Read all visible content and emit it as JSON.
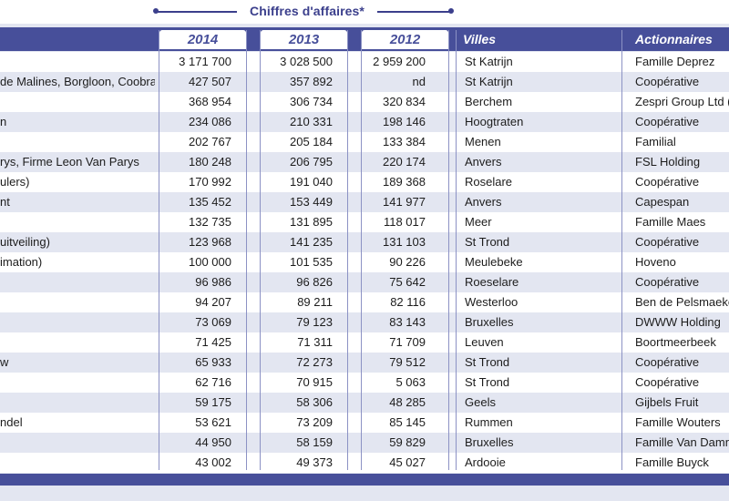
{
  "group_header": "Chiffres d'affaires*",
  "columns": {
    "y2014": "2014",
    "y2013": "2013",
    "y2012": "2012",
    "cities": "Villes",
    "shareholders": "Actionnaires"
  },
  "rows": [
    {
      "name": "",
      "y2014": "3 171 700",
      "y2013": "3 028 500",
      "y2012": "2 959 200",
      "city": "St Katrijn",
      "owner": "Famille Deprez"
    },
    {
      "name": "de Malines, Borgloon, Coobra)",
      "y2014": "427 507",
      "y2013": "357 892",
      "y2012": "nd",
      "city": "St Katrijn",
      "owner": "Coopérative"
    },
    {
      "name": "",
      "y2014": "368 954",
      "y2013": "306 734",
      "y2012": "320 834",
      "city": "Berchem",
      "owner": "Zespri Group Ltd ("
    },
    {
      "name": "n",
      "y2014": "234 086",
      "y2013": "210 331",
      "y2012": "198 146",
      "city": "Hoogtraten",
      "owner": "Coopérative"
    },
    {
      "name": "",
      "y2014": "202 767",
      "y2013": "205 184",
      "y2012": "133 384",
      "city": "Menen",
      "owner": "Familial"
    },
    {
      "name": "rys, Firme Leon Van Parys",
      "y2014": "180 248",
      "y2013": "206 795",
      "y2012": "220 174",
      "city": "Anvers",
      "owner": "FSL Holding"
    },
    {
      "name": "ulers)",
      "y2014": "170 992",
      "y2013": "191 040",
      "y2012": "189 368",
      "city": "Roselare",
      "owner": "Coopérative"
    },
    {
      "name": "nt",
      "y2014": "135 452",
      "y2013": "153 449",
      "y2012": "141 977",
      "city": "Anvers",
      "owner": "Capespan"
    },
    {
      "name": "",
      "y2014": "132 735",
      "y2013": "131 895",
      "y2012": "118 017",
      "city": "Meer",
      "owner": "Famille Maes"
    },
    {
      "name": "uitveiling)",
      "y2014": "123 968",
      "y2013": "141 235",
      "y2012": "131 103",
      "city": "St Trond",
      "owner": "Coopérative"
    },
    {
      "name": "imation)",
      "y2014": "100 000",
      "y2013": "101 535",
      "y2012": "90 226",
      "city": "Meulebeke",
      "owner": "Hoveno"
    },
    {
      "name": "",
      "y2014": "96 986",
      "y2013": "96 826",
      "y2012": "75 642",
      "city": "Roeselare",
      "owner": "Coopérative"
    },
    {
      "name": "",
      "y2014": "94 207",
      "y2013": "89 211",
      "y2012": "82 116",
      "city": "Westerloo",
      "owner": "Ben de Pelsmaeke"
    },
    {
      "name": "",
      "y2014": "73 069",
      "y2013": "79 123",
      "y2012": "83 143",
      "city": "Bruxelles",
      "owner": "DWWW Holding"
    },
    {
      "name": "",
      "y2014": "71 425",
      "y2013": "71 311",
      "y2012": "71 709",
      "city": "Leuven",
      "owner": "Boortmeerbeek"
    },
    {
      "name": "w",
      "y2014": "65 933",
      "y2013": "72 273",
      "y2012": "79 512",
      "city": "St Trond",
      "owner": "Coopérative"
    },
    {
      "name": "",
      "y2014": "62 716",
      "y2013": "70 915",
      "y2012": "5 063",
      "city": "St Trond",
      "owner": "Coopérative"
    },
    {
      "name": "",
      "y2014": "59 175",
      "y2013": "58 306",
      "y2012": "48 285",
      "city": "Geels",
      "owner": "Gijbels Fruit"
    },
    {
      "name": "ndel",
      "y2014": "53 621",
      "y2013": "73 209",
      "y2012": "85 145",
      "city": "Rummen",
      "owner": "Famille Wouters"
    },
    {
      "name": "",
      "y2014": "44 950",
      "y2013": "58 159",
      "y2012": "59 829",
      "city": "Bruxelles",
      "owner": "Famille Van Damn"
    },
    {
      "name": "",
      "y2014": "43 002",
      "y2013": "49 373",
      "y2012": "45 027",
      "city": "Ardooie",
      "owner": "Famille Buyck"
    }
  ]
}
